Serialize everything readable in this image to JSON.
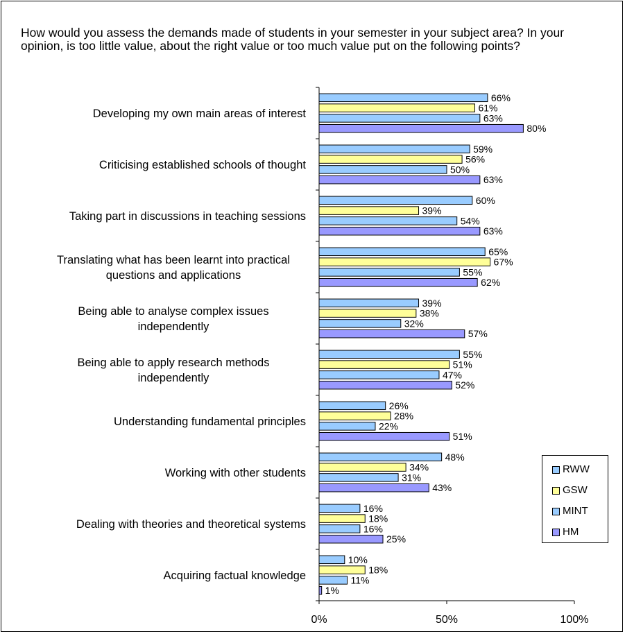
{
  "question": "How would you assess the demands made of students in your semester in your subject area? In your opinion,  is too little value, about the right value or too much value put on the following points?",
  "chart_data": {
    "type": "bar",
    "orientation": "horizontal",
    "categories": [
      [
        "Developing my own main areas of interest"
      ],
      [
        "Criticising established schools of thought"
      ],
      [
        "Taking part in discussions in teaching sessions"
      ],
      [
        "Translating what has been learnt into practical",
        "questions and applications"
      ],
      [
        "Being able to analyse complex issues",
        "independently"
      ],
      [
        "Being able to apply research methods",
        "independently"
      ],
      [
        "Understanding fundamental principles"
      ],
      [
        "Working with other students"
      ],
      [
        "Dealing with theories and theoretical systems"
      ],
      [
        "Acquiring factual knowledge"
      ]
    ],
    "series": [
      {
        "name": "RWW",
        "color": "#99ccff",
        "values": [
          66,
          59,
          60,
          65,
          39,
          55,
          26,
          48,
          16,
          10
        ]
      },
      {
        "name": "GSW",
        "color": "#ffff99",
        "values": [
          61,
          56,
          39,
          67,
          38,
          51,
          28,
          34,
          18,
          18
        ]
      },
      {
        "name": "MINT",
        "color": "#99ccff",
        "values": [
          63,
          50,
          54,
          55,
          32,
          47,
          22,
          31,
          16,
          11
        ]
      },
      {
        "name": "HM",
        "color": "#9999ff",
        "values": [
          80,
          63,
          63,
          62,
          57,
          52,
          51,
          43,
          25,
          1
        ]
      }
    ],
    "value_suffix": "%",
    "xlim": [
      0,
      100
    ],
    "xticks": [
      "0%",
      "50%",
      "100%"
    ],
    "legend_position": "right",
    "grid": false
  }
}
